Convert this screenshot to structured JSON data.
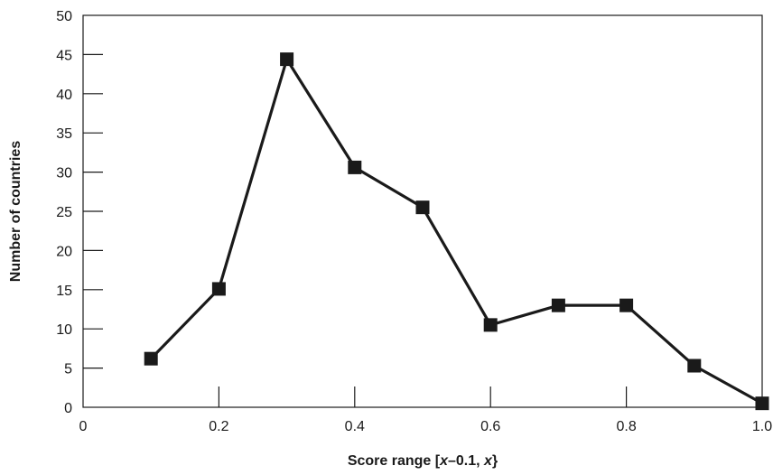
{
  "chart_data": {
    "type": "line",
    "title": "",
    "xlabel": "Score range [x–0.1, x}",
    "xlabel_parts": {
      "open": "Score range [",
      "var1": "x",
      "mid": "–0.1, ",
      "var2": "x",
      "close": "}"
    },
    "ylabel": "Number of countries",
    "xlim": [
      0,
      1.0
    ],
    "ylim": [
      0,
      50
    ],
    "x_ticks": [
      {
        "value": 0,
        "label": "0"
      },
      {
        "value": 0.2,
        "label": "0.2"
      },
      {
        "value": 0.4,
        "label": "0.4"
      },
      {
        "value": 0.6,
        "label": "0.6"
      },
      {
        "value": 0.8,
        "label": "0.8"
      },
      {
        "value": 1.0,
        "label": "1.0"
      }
    ],
    "y_ticks": [
      {
        "value": 0,
        "label": "0"
      },
      {
        "value": 5,
        "label": "5"
      },
      {
        "value": 10,
        "label": "10"
      },
      {
        "value": 15,
        "label": "15"
      },
      {
        "value": 20,
        "label": "20"
      },
      {
        "value": 25,
        "label": "25"
      },
      {
        "value": 30,
        "label": "30"
      },
      {
        "value": 35,
        "label": "35"
      },
      {
        "value": 40,
        "label": "40"
      },
      {
        "value": 45,
        "label": "45"
      },
      {
        "value": 50,
        "label": "50"
      }
    ],
    "grid": false,
    "marker": "square",
    "line_color": "#1a1a1a",
    "series": [
      {
        "x": [
          0.1,
          0.2,
          0.3,
          0.4,
          0.5,
          0.6,
          0.7,
          0.8,
          0.9,
          1.0
        ],
        "values": [
          6.2,
          15.1,
          44.4,
          30.6,
          25.5,
          10.5,
          13.0,
          13.0,
          5.3,
          0.5
        ]
      }
    ]
  }
}
